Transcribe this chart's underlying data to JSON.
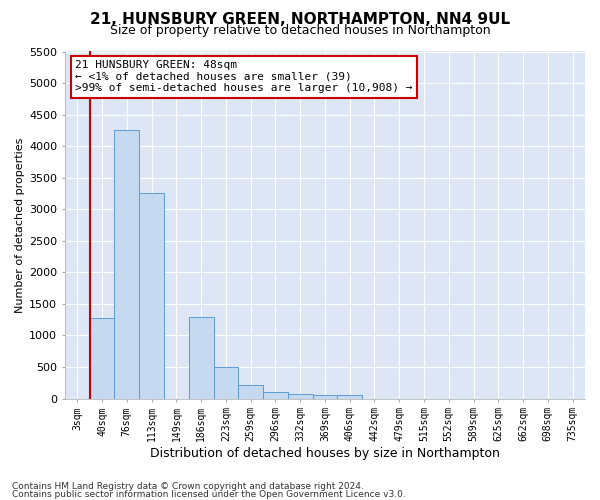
{
  "title": "21, HUNSBURY GREEN, NORTHAMPTON, NN4 9UL",
  "subtitle": "Size of property relative to detached houses in Northampton",
  "xlabel": "Distribution of detached houses by size in Northampton",
  "ylabel": "Number of detached properties",
  "footer_line1": "Contains HM Land Registry data © Crown copyright and database right 2024.",
  "footer_line2": "Contains public sector information licensed under the Open Government Licence v3.0.",
  "annotation_line1": "21 HUNSBURY GREEN: 48sqm",
  "annotation_line2": "← <1% of detached houses are smaller (39)",
  "annotation_line3": ">99% of semi-detached houses are larger (10,908) →",
  "bar_color": "#c5d9f0",
  "bar_edge_color": "#5b9bd5",
  "marker_color": "#cc0000",
  "ylim": [
    0,
    5500
  ],
  "yticks": [
    0,
    500,
    1000,
    1500,
    2000,
    2500,
    3000,
    3500,
    4000,
    4500,
    5000,
    5500
  ],
  "categories": [
    "3sqm",
    "40sqm",
    "76sqm",
    "113sqm",
    "149sqm",
    "186sqm",
    "223sqm",
    "259sqm",
    "296sqm",
    "332sqm",
    "369sqm",
    "406sqm",
    "442sqm",
    "479sqm",
    "515sqm",
    "552sqm",
    "589sqm",
    "625sqm",
    "662sqm",
    "698sqm",
    "735sqm"
  ],
  "values": [
    0,
    1270,
    4250,
    3250,
    0,
    1300,
    500,
    220,
    105,
    80,
    60,
    60,
    0,
    0,
    0,
    0,
    0,
    0,
    0,
    0,
    0
  ],
  "plot_bg_color": "#dce6f5",
  "fig_bg_color": "#ffffff",
  "grid_color": "#ffffff",
  "annotation_box_color": "#ffffff",
  "annotation_box_edge": "#cc0000",
  "title_fontsize": 11,
  "subtitle_fontsize": 9,
  "xlabel_fontsize": 9,
  "ylabel_fontsize": 8,
  "tick_fontsize": 8,
  "xtick_fontsize": 7,
  "footer_fontsize": 6.5,
  "annotation_fontsize": 8
}
